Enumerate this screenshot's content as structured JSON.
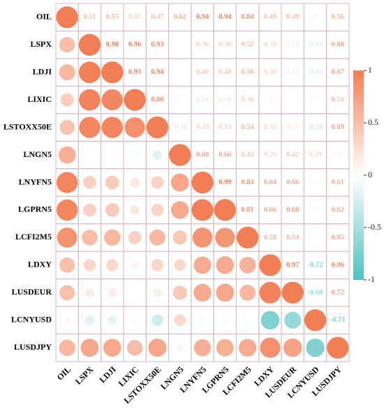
{
  "chart_data": {
    "type": "corrplot",
    "variables": [
      "OIL",
      "LSPX",
      "LDJI",
      "LIXIC",
      "LSTOXX50E",
      "LNGN5",
      "LNYFN5",
      "LGPRN5",
      "LCFI2M5",
      "LDXY",
      "LUSDEUR",
      "LCNYUSD",
      "LUSDJPY"
    ],
    "values": [
      [
        1,
        0.51,
        0.55,
        0.37,
        0.47,
        0.62,
        0.94,
        0.94,
        0.84,
        0.49,
        0.49,
        0.07,
        0.56
      ],
      [
        null,
        1,
        0.98,
        0.96,
        0.93,
        0.02,
        0.36,
        0.36,
        0.52,
        0.31,
        0.15,
        -0.19,
        0.68
      ],
      [
        null,
        null,
        1,
        0.93,
        0.94,
        0.01,
        0.4,
        0.4,
        0.56,
        0.3,
        0.15,
        -0.16,
        0.67
      ],
      [
        null,
        null,
        null,
        1,
        0.86,
        -0.03,
        0.18,
        0.18,
        0.36,
        0.09,
        0.02,
        -0.03,
        0.51
      ],
      [
        null,
        null,
        null,
        null,
        1,
        -0.18,
        0.33,
        0.33,
        0.54,
        0.31,
        0.14,
        -0.28,
        0.69
      ],
      [
        null,
        null,
        null,
        null,
        null,
        1,
        0.68,
        0.66,
        0.43,
        0.29,
        0.42,
        0.29,
        0.09
      ],
      [
        null,
        null,
        null,
        null,
        null,
        null,
        1,
        0.99,
        0.83,
        0.64,
        0.66,
        -0.05,
        0.61
      ],
      [
        null,
        null,
        null,
        null,
        null,
        null,
        null,
        1,
        0.81,
        0.66,
        0.68,
        -0.03,
        0.62
      ],
      [
        null,
        null,
        null,
        null,
        null,
        null,
        null,
        null,
        1,
        0.58,
        0.54,
        -0.03,
        0.65
      ],
      [
        null,
        null,
        null,
        null,
        null,
        null,
        null,
        null,
        null,
        1,
        0.97,
        -0.72,
        0.86
      ],
      [
        null,
        null,
        null,
        null,
        null,
        null,
        null,
        null,
        null,
        null,
        1,
        -0.6,
        0.72
      ],
      [
        null,
        null,
        null,
        null,
        null,
        null,
        null,
        null,
        null,
        null,
        null,
        1,
        -0.71
      ],
      [
        null,
        null,
        null,
        null,
        null,
        null,
        null,
        null,
        null,
        null,
        null,
        null,
        1
      ]
    ],
    "value_labels": [
      [
        null,
        "0.51",
        "0.55",
        "0.37",
        "0.47",
        "0.62",
        "0.94",
        "0.94",
        "0.84",
        "0.49",
        "0.49",
        "0.07",
        "0.56"
      ],
      [
        null,
        null,
        "0.98",
        "0.96",
        "0.93",
        "0.02",
        "0.36",
        "0.36",
        "0.52",
        "0.31",
        "0.15",
        "-0.19",
        "0.68"
      ],
      [
        null,
        null,
        null,
        "0.93",
        "0.94",
        "0.01",
        "0.40",
        "0.40",
        "0.56",
        "0.30",
        "0.15",
        "-0.16",
        "0.67"
      ],
      [
        null,
        null,
        null,
        null,
        "0.86",
        "-0.03",
        "0.18",
        "0.18",
        "0.36",
        "0.09",
        "0.02",
        "-0.03",
        "0.51"
      ],
      [
        null,
        null,
        null,
        null,
        null,
        "-0.18",
        "0.33",
        "0.33",
        "0.54",
        "0.31",
        "0.14",
        "-0.28",
        "0.69"
      ],
      [
        null,
        null,
        null,
        null,
        null,
        null,
        "0.68",
        "0.66",
        "0.43",
        "0.29",
        "0.42",
        "0.29",
        "0.09"
      ],
      [
        null,
        null,
        null,
        null,
        null,
        null,
        null,
        "0.99",
        "0.83",
        "0.64",
        "0.66",
        "-0.05",
        "0.61"
      ],
      [
        null,
        null,
        null,
        null,
        null,
        null,
        null,
        null,
        "0.81",
        "0.66",
        "0.68",
        "-0.03",
        "0.62"
      ],
      [
        null,
        null,
        null,
        null,
        null,
        null,
        null,
        null,
        null,
        "0.58",
        "0.54",
        "-0.03",
        "0.65"
      ],
      [
        null,
        null,
        null,
        null,
        null,
        null,
        null,
        null,
        null,
        null,
        "0.97",
        "-0.72",
        "0.86"
      ],
      [
        null,
        null,
        null,
        null,
        null,
        null,
        null,
        null,
        null,
        null,
        null,
        "-0.60",
        "0.72"
      ],
      [
        null,
        null,
        null,
        null,
        null,
        null,
        null,
        null,
        null,
        null,
        null,
        null,
        "-0.71"
      ],
      [
        null,
        null,
        null,
        null,
        null,
        null,
        null,
        null,
        null,
        null,
        null,
        null,
        null
      ]
    ],
    "positive_color": "#f27e55",
    "negative_color": "#4fc0c0",
    "clim": [
      -1,
      1
    ],
    "colorbar_ticks": [
      1,
      0.5,
      0,
      -0.5,
      -1
    ]
  }
}
